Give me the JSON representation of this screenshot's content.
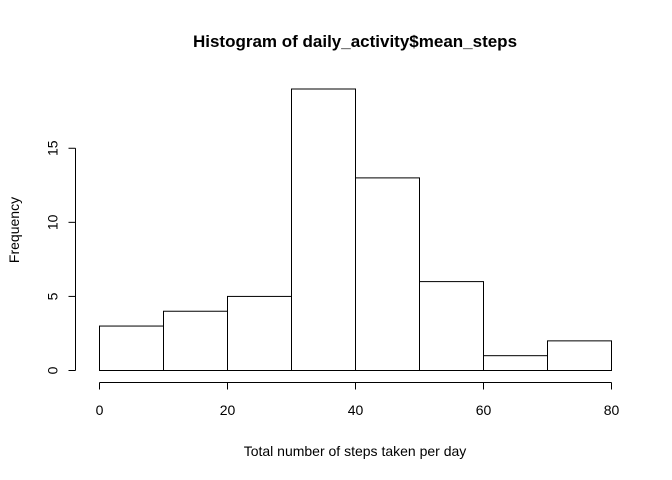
{
  "chart_data": {
    "type": "bar",
    "title": "Histogram of daily_activity$mean_steps",
    "xlabel": "Total number of steps taken per day",
    "ylabel": "Frequency",
    "bins": [
      {
        "from": 0,
        "to": 10,
        "count": 3
      },
      {
        "from": 10,
        "to": 20,
        "count": 4
      },
      {
        "from": 20,
        "to": 30,
        "count": 5
      },
      {
        "from": 30,
        "to": 40,
        "count": 19
      },
      {
        "from": 40,
        "to": 50,
        "count": 13
      },
      {
        "from": 50,
        "to": 60,
        "count": 6
      },
      {
        "from": 60,
        "to": 70,
        "count": 1
      },
      {
        "from": 70,
        "to": 80,
        "count": 2
      }
    ],
    "xlim": [
      0,
      80
    ],
    "ylim": [
      0,
      19
    ],
    "x_ticks": [
      0,
      20,
      40,
      60,
      80
    ],
    "y_ticks": [
      0,
      5,
      10,
      15
    ],
    "grid": false,
    "colors": {
      "bar_fill": "#ffffff",
      "bar_stroke": "#000000"
    }
  }
}
